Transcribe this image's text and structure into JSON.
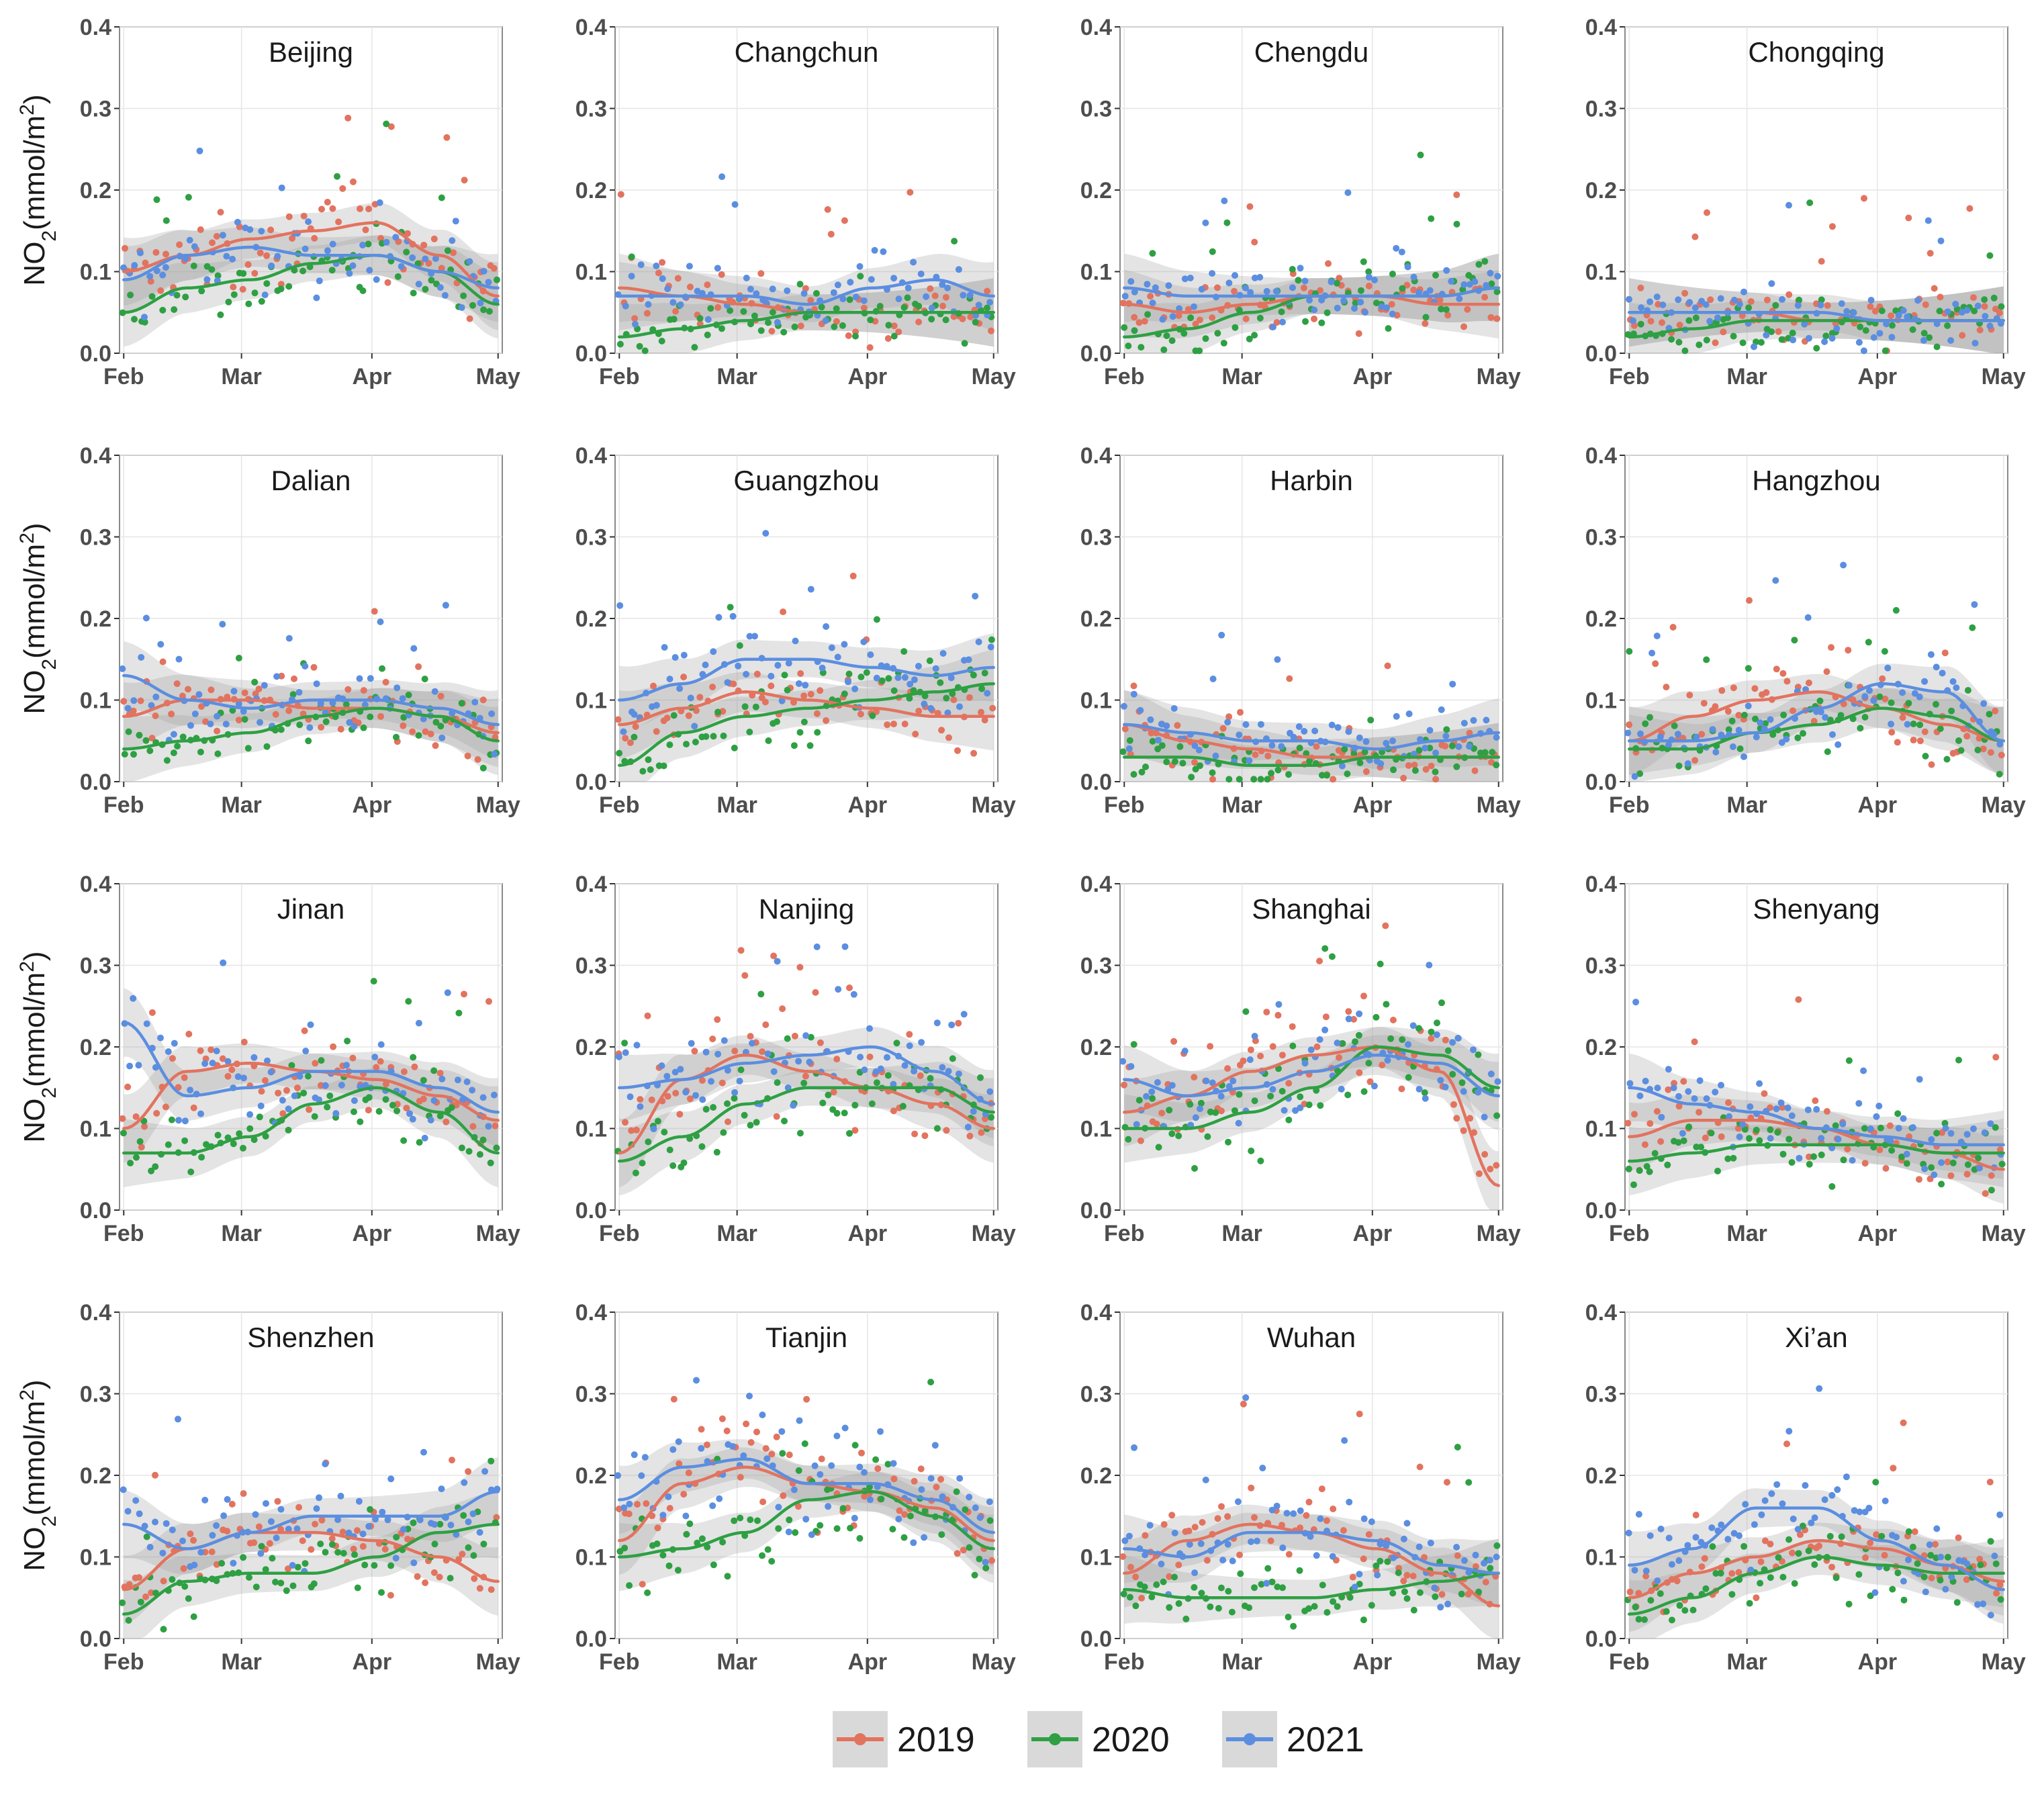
{
  "chart_data": {
    "type": "scatter",
    "layout_grid": {
      "rows": 4,
      "cols": 4
    },
    "ylabel": "NO2(mmol/m2)",
    "ylim": [
      0.0,
      0.4
    ],
    "yticks": [
      "0.0",
      "0.1",
      "0.2",
      "0.3",
      "0.4"
    ],
    "ytick_values": [
      0.0,
      0.1,
      0.2,
      0.3,
      0.4
    ],
    "xticks": [
      "Feb",
      "Mar",
      "Apr",
      "May"
    ],
    "xtick_values": [
      0,
      28,
      59,
      89
    ],
    "xlim": [
      -1,
      90
    ],
    "grid": true,
    "legend_position": "bottom-center",
    "series": [
      {
        "name": "2019",
        "color": "#e2735f"
      },
      {
        "name": "2020",
        "color": "#2ea043"
      },
      {
        "name": "2021",
        "color": "#5b8ee0"
      }
    ],
    "panels": [
      {
        "title": "Beijing",
        "trend": {
          "x": [
            0,
            15,
            30,
            45,
            60,
            75,
            89
          ],
          "y2019": [
            0.1,
            0.12,
            0.14,
            0.15,
            0.16,
            0.12,
            0.07
          ],
          "y2020": [
            0.05,
            0.08,
            0.09,
            0.11,
            0.12,
            0.1,
            0.06
          ],
          "y2021": [
            0.09,
            0.12,
            0.13,
            0.12,
            0.12,
            0.1,
            0.08
          ]
        }
      },
      {
        "title": "Changchun",
        "trend": {
          "x": [
            0,
            15,
            30,
            45,
            60,
            75,
            89
          ],
          "y2019": [
            0.08,
            0.07,
            0.06,
            0.05,
            0.05,
            0.05,
            0.05
          ],
          "y2020": [
            0.02,
            0.03,
            0.04,
            0.05,
            0.05,
            0.05,
            0.05
          ],
          "y2021": [
            0.07,
            0.07,
            0.07,
            0.06,
            0.08,
            0.09,
            0.07
          ]
        }
      },
      {
        "title": "Chengdu",
        "trend": {
          "x": [
            0,
            15,
            30,
            45,
            60,
            75,
            89
          ],
          "y2019": [
            0.06,
            0.05,
            0.06,
            0.07,
            0.07,
            0.06,
            0.06
          ],
          "y2020": [
            0.02,
            0.03,
            0.05,
            0.07,
            0.07,
            0.07,
            0.08
          ],
          "y2021": [
            0.08,
            0.07,
            0.07,
            0.07,
            0.07,
            0.07,
            0.08
          ]
        }
      },
      {
        "title": "Chongqing",
        "trend": {
          "x": [
            0,
            15,
            30,
            45,
            60,
            75,
            89
          ],
          "y2019": [
            0.05,
            0.05,
            0.05,
            0.04,
            0.04,
            0.04,
            0.04
          ],
          "y2020": [
            0.02,
            0.03,
            0.04,
            0.04,
            0.04,
            0.04,
            0.04
          ],
          "y2021": [
            0.05,
            0.05,
            0.05,
            0.05,
            0.04,
            0.04,
            0.04
          ]
        }
      },
      {
        "title": "Dalian",
        "trend": {
          "x": [
            0,
            15,
            30,
            45,
            60,
            75,
            89
          ],
          "y2019": [
            0.08,
            0.1,
            0.1,
            0.09,
            0.09,
            0.08,
            0.06
          ],
          "y2020": [
            0.04,
            0.05,
            0.06,
            0.08,
            0.09,
            0.08,
            0.05
          ],
          "y2021": [
            0.13,
            0.1,
            0.09,
            0.1,
            0.1,
            0.09,
            0.07
          ]
        }
      },
      {
        "title": "Guangzhou",
        "trend": {
          "x": [
            0,
            15,
            30,
            45,
            60,
            75,
            89
          ],
          "y2019": [
            0.07,
            0.09,
            0.11,
            0.1,
            0.09,
            0.08,
            0.08
          ],
          "y2020": [
            0.02,
            0.06,
            0.08,
            0.09,
            0.1,
            0.11,
            0.12
          ],
          "y2021": [
            0.1,
            0.12,
            0.15,
            0.15,
            0.14,
            0.13,
            0.14
          ]
        }
      },
      {
        "title": "Harbin",
        "trend": {
          "x": [
            0,
            15,
            30,
            45,
            60,
            75,
            89
          ],
          "y2019": [
            0.07,
            0.05,
            0.04,
            0.03,
            0.03,
            0.03,
            0.03
          ],
          "y2020": [
            0.03,
            0.03,
            0.02,
            0.02,
            0.03,
            0.03,
            0.03
          ],
          "y2021": [
            0.07,
            0.06,
            0.05,
            0.05,
            0.04,
            0.05,
            0.06
          ]
        }
      },
      {
        "title": "Hangzhou",
        "trend": {
          "x": [
            0,
            15,
            30,
            45,
            60,
            75,
            89
          ],
          "y2019": [
            0.05,
            0.08,
            0.1,
            0.11,
            0.09,
            0.07,
            0.05
          ],
          "y2020": [
            0.04,
            0.04,
            0.06,
            0.07,
            0.09,
            0.08,
            0.05
          ],
          "y2021": [
            0.05,
            0.05,
            0.06,
            0.09,
            0.12,
            0.11,
            0.05
          ]
        }
      },
      {
        "title": "Jinan",
        "trend": {
          "x": [
            0,
            15,
            30,
            45,
            60,
            75,
            89
          ],
          "y2019": [
            0.1,
            0.17,
            0.18,
            0.17,
            0.16,
            0.14,
            0.11
          ],
          "y2020": [
            0.07,
            0.07,
            0.09,
            0.13,
            0.15,
            0.12,
            0.07
          ],
          "y2021": [
            0.23,
            0.14,
            0.15,
            0.17,
            0.17,
            0.15,
            0.12
          ]
        }
      },
      {
        "title": "Nanjing",
        "trend": {
          "x": [
            0,
            15,
            30,
            45,
            60,
            75,
            89
          ],
          "y2019": [
            0.07,
            0.16,
            0.19,
            0.17,
            0.15,
            0.13,
            0.1
          ],
          "y2020": [
            0.06,
            0.09,
            0.13,
            0.15,
            0.15,
            0.15,
            0.12
          ],
          "y2021": [
            0.15,
            0.16,
            0.18,
            0.19,
            0.2,
            0.17,
            0.13
          ]
        }
      },
      {
        "title": "Shanghai",
        "trend": {
          "x": [
            0,
            15,
            30,
            45,
            60,
            75,
            89
          ],
          "y2019": [
            0.12,
            0.14,
            0.17,
            0.19,
            0.2,
            0.17,
            0.03
          ],
          "y2020": [
            0.1,
            0.1,
            0.12,
            0.15,
            0.2,
            0.19,
            0.15
          ],
          "y2021": [
            0.16,
            0.14,
            0.15,
            0.17,
            0.19,
            0.18,
            0.14
          ]
        }
      },
      {
        "title": "Shenyang",
        "trend": {
          "x": [
            0,
            15,
            30,
            45,
            60,
            75,
            89
          ],
          "y2019": [
            0.09,
            0.11,
            0.11,
            0.1,
            0.08,
            0.07,
            0.05
          ],
          "y2020": [
            0.06,
            0.07,
            0.08,
            0.08,
            0.08,
            0.07,
            0.07
          ],
          "y2021": [
            0.15,
            0.13,
            0.12,
            0.1,
            0.09,
            0.08,
            0.08
          ]
        }
      },
      {
        "title": "Shenzhen",
        "trend": {
          "x": [
            0,
            15,
            30,
            45,
            60,
            75,
            89
          ],
          "y2019": [
            0.06,
            0.11,
            0.13,
            0.13,
            0.12,
            0.1,
            0.07
          ],
          "y2020": [
            0.03,
            0.07,
            0.08,
            0.08,
            0.1,
            0.13,
            0.14
          ],
          "y2021": [
            0.14,
            0.11,
            0.13,
            0.15,
            0.15,
            0.15,
            0.18
          ]
        }
      },
      {
        "title": "Tianjin",
        "trend": {
          "x": [
            0,
            15,
            30,
            45,
            60,
            75,
            89
          ],
          "y2019": [
            0.12,
            0.19,
            0.21,
            0.19,
            0.18,
            0.16,
            0.12
          ],
          "y2020": [
            0.1,
            0.11,
            0.13,
            0.17,
            0.18,
            0.15,
            0.11
          ],
          "y2021": [
            0.17,
            0.21,
            0.22,
            0.19,
            0.19,
            0.17,
            0.13
          ]
        }
      },
      {
        "title": "Wuhan",
        "trend": {
          "x": [
            0,
            15,
            30,
            45,
            60,
            75,
            89
          ],
          "y2019": [
            0.08,
            0.12,
            0.14,
            0.13,
            0.11,
            0.08,
            0.04
          ],
          "y2020": [
            0.06,
            0.05,
            0.05,
            0.05,
            0.06,
            0.07,
            0.08
          ],
          "y2021": [
            0.11,
            0.1,
            0.13,
            0.13,
            0.12,
            0.09,
            0.08
          ]
        }
      },
      {
        "title": "Xi’an",
        "trend": {
          "x": [
            0,
            15,
            30,
            45,
            60,
            75,
            89
          ],
          "y2019": [
            0.05,
            0.08,
            0.1,
            0.12,
            0.11,
            0.09,
            0.07
          ],
          "y2020": [
            0.03,
            0.05,
            0.08,
            0.1,
            0.09,
            0.08,
            0.08
          ],
          "y2021": [
            0.09,
            0.11,
            0.16,
            0.16,
            0.12,
            0.09,
            0.06
          ]
        }
      }
    ]
  }
}
